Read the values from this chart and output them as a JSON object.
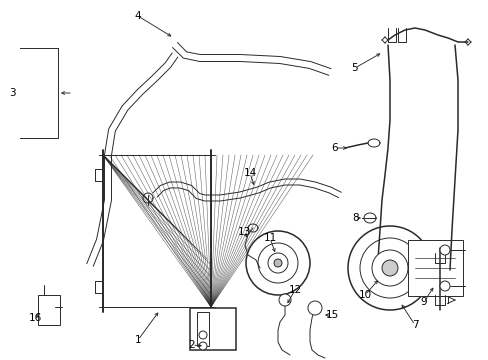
{
  "bg_color": "#ffffff",
  "line_color": "#2a2a2a",
  "fig_width": 4.89,
  "fig_height": 3.6,
  "dpi": 100,
  "lw_main": 1.1,
  "lw_thin": 0.7,
  "lw_thick": 1.4,
  "font_size": 7.5
}
